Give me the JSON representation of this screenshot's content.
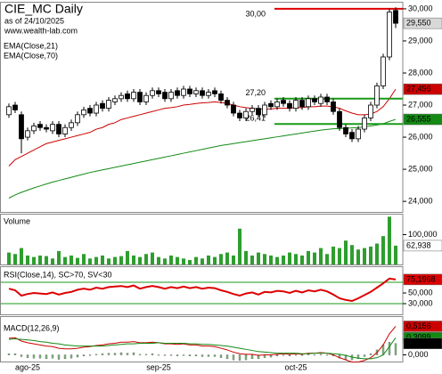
{
  "chart_data": [
    {
      "type": "candlestick",
      "title": "CIE_MC Daily",
      "subtitle": "as of 24/10/2025",
      "source": "www.wealth-lab.com",
      "categories": [
        null,
        null,
        null,
        "ago-25",
        null,
        null,
        null,
        null,
        null,
        null,
        null,
        null,
        null,
        null,
        null,
        null,
        null,
        null,
        null,
        null,
        null,
        null,
        null,
        null,
        "sep-25",
        null,
        null,
        null,
        null,
        null,
        null,
        null,
        null,
        null,
        null,
        null,
        null,
        null,
        null,
        null,
        null,
        null,
        null,
        null,
        null,
        null,
        "oct-25",
        null,
        null,
        null,
        null,
        null,
        null,
        null,
        null,
        null,
        null,
        null,
        null,
        null,
        null,
        null,
        null
      ],
      "open": [
        26.7,
        27.0,
        26.7,
        26.0,
        26.2,
        26.4,
        26.3,
        26.2,
        26.4,
        26.1,
        26.3,
        26.45,
        26.7,
        26.9,
        26.75,
        27.05,
        26.9,
        27.1,
        27.2,
        27.35,
        27.2,
        27.4,
        27.1,
        27.3,
        27.45,
        27.4,
        27.2,
        27.45,
        27.3,
        27.5,
        27.35,
        27.45,
        27.3,
        27.45,
        27.35,
        27.15,
        27.0,
        26.75,
        26.6,
        26.8,
        26.9,
        26.7,
        27.05,
        26.95,
        27.15,
        27.05,
        26.9,
        27.15,
        26.95,
        27.2,
        27.05,
        27.25,
        27.1,
        26.8,
        26.3,
        26.15,
        25.95,
        26.25,
        26.6,
        27.0,
        27.6,
        28.5,
        29.95
      ],
      "high": [
        27.05,
        27.1,
        26.8,
        26.3,
        26.45,
        26.5,
        26.4,
        26.5,
        26.5,
        26.4,
        26.55,
        26.8,
        26.95,
        27.0,
        27.1,
        27.15,
        27.25,
        27.3,
        27.4,
        27.45,
        27.5,
        27.5,
        27.4,
        27.55,
        27.55,
        27.5,
        27.5,
        27.55,
        27.6,
        27.6,
        27.55,
        27.55,
        27.5,
        27.55,
        27.45,
        27.25,
        27.1,
        26.85,
        26.9,
        27.0,
        27.0,
        27.1,
        27.15,
        27.2,
        27.25,
        27.15,
        27.25,
        27.25,
        27.3,
        27.3,
        27.35,
        27.35,
        27.2,
        26.9,
        26.4,
        26.25,
        26.35,
        26.7,
        27.1,
        27.7,
        28.6,
        30.0,
        30.05
      ],
      "low": [
        26.6,
        26.75,
        25.5,
        25.9,
        26.1,
        26.2,
        26.15,
        26.1,
        26.0,
        26.0,
        26.2,
        26.35,
        26.6,
        26.65,
        26.65,
        26.8,
        26.8,
        27.0,
        27.1,
        27.1,
        27.1,
        27.0,
        27.0,
        27.2,
        27.25,
        27.1,
        27.1,
        27.2,
        27.2,
        27.25,
        27.25,
        27.2,
        27.2,
        27.25,
        27.05,
        26.9,
        26.65,
        26.5,
        26.5,
        26.7,
        26.6,
        26.6,
        26.85,
        26.85,
        26.95,
        26.8,
        26.8,
        26.85,
        26.85,
        27.0,
        26.95,
        27.0,
        26.7,
        26.2,
        26.0,
        25.85,
        25.85,
        26.15,
        26.5,
        26.9,
        27.5,
        28.4,
        29.4
      ],
      "close": [
        26.95,
        26.85,
        25.95,
        26.2,
        26.35,
        26.3,
        26.25,
        26.4,
        26.1,
        26.3,
        26.45,
        26.7,
        26.85,
        26.75,
        27.0,
        26.9,
        27.15,
        27.2,
        27.3,
        27.2,
        27.4,
        27.1,
        27.3,
        27.45,
        27.35,
        27.2,
        27.4,
        27.3,
        27.5,
        27.35,
        27.45,
        27.3,
        27.4,
        27.35,
        27.15,
        27.0,
        26.75,
        26.6,
        26.8,
        26.9,
        26.7,
        27.0,
        26.95,
        27.1,
        27.05,
        26.9,
        27.15,
        26.95,
        27.2,
        27.1,
        27.25,
        27.1,
        26.8,
        26.3,
        26.1,
        25.95,
        26.25,
        26.6,
        27.0,
        27.6,
        28.5,
        29.9,
        29.55
      ],
      "close_label": "29,550",
      "close_label_color": "#d8d8d8",
      "up_color": "#ffffff",
      "down_color": "#000000",
      "series": [
        {
          "name": "EMA(Close,21)",
          "color": "#cc0000",
          "last_label": "27,496",
          "values": [
            25.1,
            25.3,
            25.4,
            25.5,
            25.6,
            25.7,
            25.8,
            25.85,
            25.9,
            25.95,
            26.0,
            26.05,
            26.1,
            26.15,
            26.25,
            26.3,
            26.4,
            26.45,
            26.55,
            26.6,
            26.65,
            26.7,
            26.75,
            26.8,
            26.85,
            26.9,
            26.92,
            26.95,
            27.0,
            27.02,
            27.05,
            27.07,
            27.08,
            27.1,
            27.08,
            27.05,
            27.0,
            26.95,
            26.92,
            26.9,
            26.88,
            26.88,
            26.88,
            26.9,
            26.9,
            26.9,
            26.92,
            26.92,
            26.95,
            26.95,
            26.97,
            26.97,
            26.95,
            26.9,
            26.82,
            26.75,
            26.7,
            26.7,
            26.72,
            26.8,
            26.95,
            27.2,
            27.496
          ]
        },
        {
          "name": "EMA(Close,70)",
          "color": "#138a13",
          "last_label": "26,555",
          "values": [
            24.1,
            24.2,
            24.28,
            24.35,
            24.42,
            24.48,
            24.54,
            24.6,
            24.65,
            24.7,
            24.75,
            24.8,
            24.85,
            24.9,
            24.94,
            24.98,
            25.02,
            25.06,
            25.1,
            25.14,
            25.18,
            25.22,
            25.26,
            25.3,
            25.34,
            25.38,
            25.42,
            25.46,
            25.5,
            25.54,
            25.58,
            25.62,
            25.66,
            25.7,
            25.74,
            25.77,
            25.8,
            25.83,
            25.86,
            25.89,
            25.92,
            25.95,
            25.98,
            26.01,
            26.04,
            26.07,
            26.1,
            26.13,
            26.16,
            26.19,
            26.22,
            26.24,
            26.26,
            26.27,
            26.28,
            26.29,
            26.3,
            26.32,
            26.35,
            26.38,
            26.42,
            26.49,
            26.555
          ]
        }
      ],
      "levels": [
        {
          "value": 30,
          "label": "30,00",
          "color": "#e00000"
        },
        {
          "value": 27.2,
          "label": "27,20",
          "color": "#1a9a1a"
        },
        {
          "value": 26.41,
          "label": "26,41",
          "color": "#1a9a1a"
        }
      ],
      "ylim": [
        23.67,
        30.22
      ],
      "yticks": [
        {
          "value": 24,
          "label": "24,000"
        },
        {
          "value": 25,
          "label": "25,000"
        },
        {
          "value": 26,
          "label": "26,000"
        },
        {
          "value": 27,
          "label": "27,000"
        },
        {
          "value": 28,
          "label": "28,000"
        },
        {
          "value": 29,
          "label": "29,000"
        },
        {
          "value": 30,
          "label": "30,000"
        }
      ]
    },
    {
      "type": "bar",
      "title": "Volume",
      "color": "#2e9e2e",
      "last_label": "62,938",
      "values": [
        40000,
        35000,
        55000,
        30000,
        25000,
        30000,
        28000,
        20000,
        45000,
        25000,
        30000,
        22000,
        35000,
        20000,
        25000,
        30000,
        20000,
        25000,
        28000,
        45000,
        30000,
        25000,
        35000,
        40000,
        25000,
        20000,
        30000,
        25000,
        20000,
        15000,
        25000,
        20000,
        30000,
        25000,
        35000,
        40000,
        30000,
        120000,
        45000,
        30000,
        40000,
        35000,
        30000,
        25000,
        30000,
        40000,
        35000,
        30000,
        45000,
        40000,
        55000,
        35000,
        60000,
        55000,
        80000,
        65000,
        50000,
        55000,
        60000,
        70000,
        95000,
        160000,
        62938
      ],
      "ylim": [
        0,
        170000
      ],
      "yticks": [
        {
          "value": 100000,
          "label": "100,000"
        }
      ]
    },
    {
      "type": "line",
      "title": "RSI(Close,14), SC>70, SV<30",
      "series": [
        {
          "color": "#dd0000",
          "last_label": "75,1968",
          "values": [
            58,
            55,
            45,
            48,
            50,
            49,
            48,
            51,
            47,
            50,
            52,
            56,
            58,
            56,
            60,
            58,
            61,
            62,
            63,
            61,
            64,
            58,
            61,
            63,
            61,
            58,
            61,
            59,
            62,
            59,
            61,
            58,
            60,
            59,
            55,
            52,
            48,
            45,
            49,
            51,
            47,
            52,
            51,
            54,
            53,
            50,
            54,
            51,
            55,
            53,
            56,
            53,
            47,
            40,
            37,
            35,
            40,
            46,
            52,
            60,
            68,
            77,
            75.1968
          ]
        }
      ],
      "levels": [
        {
          "value": 70,
          "color": "#1a9a1a"
        },
        {
          "value": 30,
          "color": "#1a9a1a"
        }
      ],
      "ylim": [
        10,
        100
      ],
      "yticks": [
        {
          "value": 50,
          "label": "50,000"
        },
        {
          "value": 30,
          "label": "30,000"
        }
      ]
    },
    {
      "type": "macd",
      "title": "MACD(12,26,9)",
      "series": [
        {
          "color": "#cc0000",
          "last_label": "0,5156",
          "values": [
            0.3,
            0.31,
            0.25,
            0.22,
            0.2,
            0.18,
            0.16,
            0.15,
            0.12,
            0.11,
            0.11,
            0.12,
            0.14,
            0.15,
            0.17,
            0.18,
            0.2,
            0.21,
            0.23,
            0.23,
            0.24,
            0.22,
            0.22,
            0.23,
            0.22,
            0.2,
            0.2,
            0.19,
            0.2,
            0.18,
            0.18,
            0.16,
            0.16,
            0.15,
            0.12,
            0.09,
            0.05,
            0.02,
            0.01,
            0.01,
            -0.01,
            0.0,
            0.0,
            0.01,
            0.02,
            0.01,
            0.02,
            0.01,
            0.03,
            0.03,
            0.04,
            0.03,
            0.0,
            -0.05,
            -0.09,
            -0.13,
            -0.13,
            -0.1,
            -0.05,
            0.04,
            0.18,
            0.38,
            0.5156
          ]
        },
        {
          "color": "#138a13",
          "last_label": "0,3099",
          "values": [
            0.28,
            0.29,
            0.28,
            0.27,
            0.26,
            0.24,
            0.23,
            0.21,
            0.2,
            0.18,
            0.17,
            0.16,
            0.16,
            0.16,
            0.16,
            0.16,
            0.17,
            0.18,
            0.19,
            0.2,
            0.2,
            0.21,
            0.21,
            0.21,
            0.22,
            0.21,
            0.21,
            0.21,
            0.21,
            0.2,
            0.2,
            0.19,
            0.19,
            0.18,
            0.17,
            0.16,
            0.14,
            0.12,
            0.1,
            0.08,
            0.06,
            0.05,
            0.04,
            0.03,
            0.03,
            0.03,
            0.03,
            0.02,
            0.02,
            0.03,
            0.03,
            0.03,
            0.02,
            0.01,
            -0.01,
            -0.04,
            -0.06,
            -0.07,
            -0.07,
            -0.05,
            0.0,
            0.15,
            0.3099
          ]
        }
      ],
      "histogram": {
        "color": "#000000",
        "last_label": "0,2057",
        "values": [
          0.02,
          0.02,
          -0.03,
          -0.05,
          -0.06,
          -0.06,
          -0.07,
          -0.06,
          -0.08,
          -0.07,
          -0.06,
          -0.04,
          -0.02,
          -0.01,
          0.01,
          0.02,
          0.03,
          0.03,
          0.04,
          0.03,
          0.04,
          0.01,
          0.01,
          0.02,
          0.0,
          -0.01,
          -0.01,
          -0.02,
          -0.01,
          -0.02,
          -0.02,
          -0.03,
          -0.03,
          -0.03,
          -0.05,
          -0.07,
          -0.09,
          -0.1,
          -0.09,
          -0.07,
          -0.07,
          -0.05,
          -0.04,
          -0.02,
          -0.01,
          -0.02,
          -0.01,
          -0.01,
          0.01,
          0.0,
          0.01,
          0.0,
          -0.02,
          -0.06,
          -0.08,
          -0.09,
          -0.07,
          -0.03,
          0.02,
          0.09,
          0.18,
          0.23,
          0.2057
        ]
      },
      "ylim": [
        -0.12,
        0.7
      ],
      "yticks": [
        {
          "value": 0,
          "label": "0,000"
        }
      ]
    }
  ]
}
